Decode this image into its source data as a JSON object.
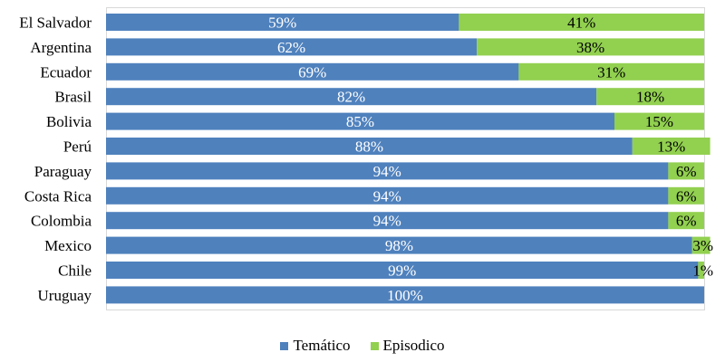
{
  "chart_data": {
    "type": "bar",
    "orientation": "horizontal",
    "stacked": true,
    "categories": [
      "El Salvador",
      "Argentina",
      "Ecuador",
      "Brasil",
      "Bolivia",
      "Perú",
      "Paraguay",
      "Costa Rica",
      "Colombia",
      "Mexico",
      "Chile",
      "Uruguay"
    ],
    "series": [
      {
        "name": "Temático",
        "color": "#4f81bd",
        "values": [
          59,
          62,
          69,
          82,
          85,
          88,
          94,
          94,
          94,
          98,
          99,
          100
        ],
        "labels": [
          "59%",
          "62%",
          "69%",
          "82%",
          "85%",
          "88%",
          "94%",
          "94%",
          "94%",
          "98%",
          "99%",
          "100%"
        ]
      },
      {
        "name": "Episodico",
        "color": "#92d050",
        "values": [
          41,
          38,
          31,
          18,
          15,
          13,
          6,
          6,
          6,
          3,
          1,
          0
        ],
        "labels": [
          "41%",
          "38%",
          "31%",
          "18%",
          "15%",
          "13%",
          "6%",
          "6%",
          "6%",
          "3%",
          "1%",
          ""
        ]
      }
    ],
    "xlim": [
      0,
      100
    ],
    "grid": false,
    "legend_position": "bottom"
  }
}
